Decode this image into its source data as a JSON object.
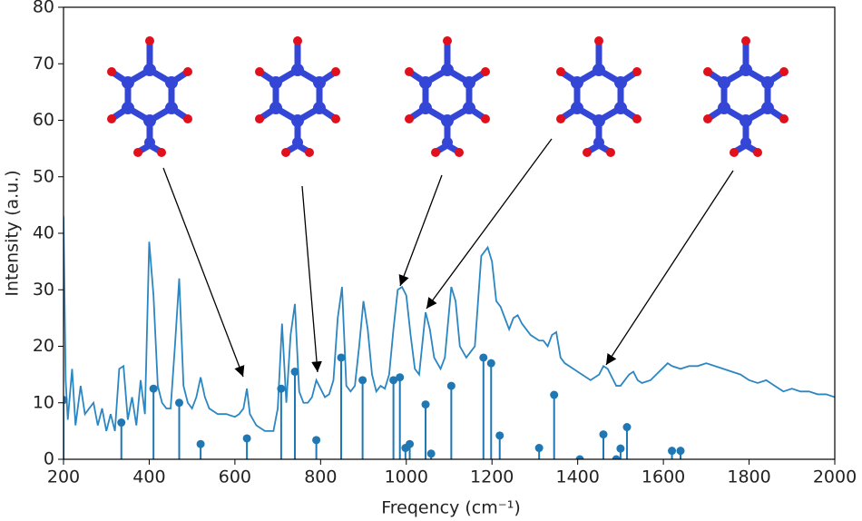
{
  "chart_data": [
    {
      "type": "line",
      "color": "#2b86c2",
      "xlabel": "Freqency (cm⁻¹)",
      "ylabel": "Intensity (a.u.)",
      "xlim": [
        200,
        2000
      ],
      "ylim": [
        0,
        80
      ],
      "xticks": [
        200,
        400,
        600,
        800,
        1000,
        1200,
        1400,
        1600,
        1800,
        2000
      ],
      "yticks": [
        0,
        10,
        20,
        30,
        40,
        50,
        60,
        70,
        80
      ],
      "x": [
        200,
        205,
        210,
        220,
        228,
        240,
        250,
        260,
        270,
        280,
        290,
        300,
        310,
        320,
        330,
        340,
        350,
        360,
        370,
        380,
        390,
        400,
        410,
        420,
        430,
        440,
        450,
        460,
        470,
        480,
        490,
        500,
        510,
        520,
        530,
        540,
        560,
        580,
        600,
        610,
        620,
        628,
        635,
        650,
        670,
        690,
        700,
        710,
        720,
        730,
        740,
        750,
        760,
        770,
        780,
        790,
        800,
        810,
        820,
        830,
        840,
        850,
        860,
        870,
        880,
        890,
        900,
        910,
        920,
        930,
        940,
        950,
        960,
        970,
        980,
        990,
        1000,
        1010,
        1020,
        1030,
        1045,
        1055,
        1065,
        1080,
        1090,
        1105,
        1115,
        1125,
        1140,
        1160,
        1175,
        1190,
        1200,
        1210,
        1220,
        1230,
        1240,
        1250,
        1260,
        1270,
        1290,
        1310,
        1320,
        1330,
        1340,
        1350,
        1360,
        1370,
        1390,
        1410,
        1430,
        1450,
        1460,
        1470,
        1480,
        1490,
        1500,
        1510,
        1520,
        1530,
        1540,
        1550,
        1570,
        1590,
        1610,
        1620,
        1640,
        1660,
        1680,
        1700,
        1720,
        1740,
        1760,
        1780,
        1800,
        1820,
        1840,
        1860,
        1880,
        1900,
        1920,
        1940,
        1960,
        1980,
        2000
      ],
      "values": [
        43,
        14,
        7,
        16,
        6,
        13,
        8,
        9,
        10,
        6,
        9,
        5,
        8,
        5,
        16,
        16.5,
        7,
        11,
        6,
        14,
        8,
        38.5,
        29,
        13,
        10,
        9,
        9,
        20,
        32,
        13,
        10,
        9,
        11,
        14.5,
        11,
        9,
        8,
        8,
        7.5,
        8,
        9,
        12.5,
        8,
        6,
        5,
        5,
        9,
        24,
        10,
        22,
        27.5,
        12,
        10,
        10,
        11,
        14,
        12.5,
        11,
        11.5,
        14,
        25,
        30.5,
        13,
        12,
        13,
        20,
        28,
        23,
        15,
        12,
        13,
        12.5,
        15,
        23,
        30,
        30.5,
        29,
        22,
        16,
        15,
        26,
        23,
        18,
        16,
        18,
        30.5,
        28,
        20,
        18,
        20,
        36,
        37.5,
        35,
        28,
        27,
        25,
        23,
        25,
        25.5,
        24,
        22,
        21,
        21,
        20,
        22,
        22.5,
        18,
        17,
        16,
        15,
        14,
        15,
        16.5,
        16,
        14.5,
        13,
        13,
        14,
        15,
        15.5,
        14,
        13.5,
        14,
        15.5,
        17,
        16.5,
        16,
        16.5,
        16.5,
        17,
        16.5,
        16,
        15.5,
        15,
        14,
        13.5,
        14,
        13,
        12,
        12.5,
        12,
        12,
        11.5,
        11.5,
        11
      ]
    },
    {
      "type": "stem",
      "color": "#1f77b4",
      "x": [
        200,
        335,
        410,
        470,
        520,
        628,
        708,
        740,
        790,
        848,
        898,
        970,
        985,
        998,
        1008,
        1045,
        1058,
        1105,
        1180,
        1198,
        1218,
        1310,
        1345,
        1405,
        1460,
        1490,
        1500,
        1515,
        1620,
        1640
      ],
      "values": [
        10.5,
        6.5,
        12.5,
        10,
        2.7,
        3.7,
        12.5,
        15.5,
        3.4,
        18,
        14,
        14,
        14.5,
        2,
        2.7,
        9.7,
        1,
        13,
        18,
        17,
        4.2,
        2,
        11.4,
        0,
        4.4,
        0,
        1.9,
        5.7,
        1.5,
        1.5
      ]
    }
  ]
}
